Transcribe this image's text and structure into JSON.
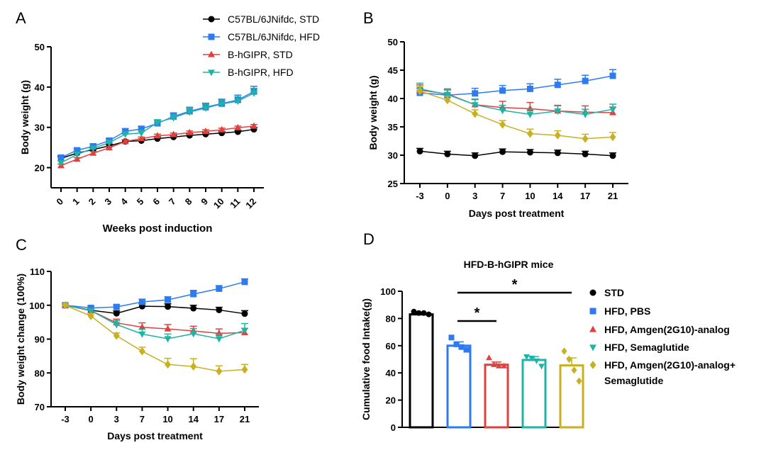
{
  "chart_data": [
    {
      "panel": "A",
      "type": "line",
      "xlabel": "Weeks post induction",
      "ylabel": "Body weight (g)",
      "ylim": [
        15,
        50
      ],
      "yticks": [
        20,
        30,
        40,
        50
      ],
      "categories": [
        "0",
        "1",
        "2",
        "3",
        "4",
        "5",
        "6",
        "7",
        "8",
        "9",
        "10",
        "11",
        "12"
      ],
      "series": [
        {
          "name": "C57BL/6JNifdc, STD",
          "color": "#000000",
          "marker": "circle",
          "values": [
            22.3,
            23.6,
            24.5,
            25.4,
            26.5,
            26.7,
            27.2,
            27.6,
            28.0,
            28.3,
            28.6,
            28.9,
            29.5
          ],
          "errors": [
            0.4,
            0.4,
            0.4,
            0.4,
            0.4,
            0.4,
            0.4,
            0.4,
            0.4,
            0.4,
            0.4,
            0.4,
            0.5
          ]
        },
        {
          "name": "C57BL/6JNifdc, HFD",
          "color": "#2e7bf0",
          "marker": "square",
          "values": [
            22.5,
            24.3,
            25.3,
            26.7,
            29.0,
            29.6,
            31.0,
            32.7,
            34.0,
            35.0,
            35.9,
            36.8,
            38.9
          ],
          "errors": [
            0.5,
            0.5,
            0.6,
            0.6,
            0.7,
            0.7,
            0.8,
            0.9,
            1.0,
            1.0,
            1.1,
            1.2,
            1.3
          ]
        },
        {
          "name": "B-hGIPR, STD",
          "color": "#e0413f",
          "marker": "triangle-up",
          "values": [
            20.5,
            22.1,
            23.6,
            24.9,
            26.5,
            27.2,
            27.9,
            28.2,
            28.7,
            29.0,
            29.4,
            29.9,
            30.3
          ],
          "errors": [
            0.4,
            0.4,
            0.4,
            0.4,
            0.4,
            0.4,
            0.4,
            0.4,
            0.4,
            0.4,
            0.4,
            0.4,
            0.4
          ]
        },
        {
          "name": "B-hGIPR, HFD",
          "color": "#1fb3a6",
          "marker": "triangle-down",
          "values": [
            21.2,
            23.3,
            24.8,
            26.2,
            28.3,
            28.6,
            31.2,
            32.4,
            33.8,
            34.8,
            35.8,
            36.5,
            38.5
          ],
          "errors": [
            0.5,
            0.5,
            0.5,
            0.6,
            0.6,
            0.7,
            0.7,
            0.8,
            0.9,
            1.0,
            1.0,
            1.1,
            1.2
          ]
        }
      ],
      "legend": "top-right"
    },
    {
      "panel": "B",
      "type": "line",
      "xlabel": "Days post treatment",
      "ylabel": "Body weight (g)",
      "ylim": [
        25,
        50
      ],
      "yticks": [
        25,
        30,
        35,
        40,
        45,
        50
      ],
      "categories": [
        "-3",
        "0",
        "3",
        "7",
        "10",
        "14",
        "17",
        "21"
      ],
      "series": [
        {
          "name": "STD",
          "color": "#000000",
          "marker": "circle",
          "values": [
            30.7,
            30.2,
            29.9,
            30.6,
            30.5,
            30.4,
            30.2,
            29.9
          ],
          "errors": [
            0.5,
            0.5,
            0.5,
            0.5,
            0.5,
            0.5,
            0.5,
            0.5
          ]
        },
        {
          "name": "HFD, PBS",
          "color": "#2e7bf0",
          "marker": "square",
          "values": [
            41.0,
            40.6,
            40.9,
            41.4,
            41.7,
            42.4,
            43.1,
            44.0
          ],
          "errors": [
            0.8,
            0.9,
            0.9,
            0.9,
            0.9,
            1.0,
            1.0,
            1.1
          ]
        },
        {
          "name": "HFD, Amgen(2G10)-analog",
          "color": "#e0413f",
          "marker": "triangle-up",
          "values": [
            41.5,
            40.8,
            38.9,
            38.4,
            38.2,
            37.8,
            37.6,
            37.5
          ],
          "errors": [
            0.9,
            0.9,
            1.0,
            1.1,
            1.1,
            1.0,
            1.1,
            1.0
          ]
        },
        {
          "name": "HFD, Semaglutide",
          "color": "#1fb3a6",
          "marker": "triangle-down",
          "values": [
            41.7,
            40.7,
            38.9,
            37.9,
            37.2,
            37.8,
            37.2,
            38.1
          ],
          "errors": [
            1.0,
            0.9,
            0.9,
            0.9,
            0.9,
            0.9,
            0.9,
            0.9
          ]
        },
        {
          "name": "HFD, Amgen(2G10)-analog+ Semaglutide",
          "color": "#c9b022",
          "marker": "diamond",
          "values": [
            41.3,
            39.7,
            37.3,
            35.4,
            33.8,
            33.5,
            32.9,
            33.2
          ],
          "errors": [
            0.8,
            0.7,
            0.7,
            0.7,
            0.8,
            0.8,
            0.8,
            0.8
          ]
        }
      ]
    },
    {
      "panel": "C",
      "type": "line",
      "xlabel": "Days post treatment",
      "ylabel": "Body weight change (100%)",
      "ylim": [
        70,
        110
      ],
      "yticks": [
        70,
        80,
        90,
        100,
        110
      ],
      "categories": [
        "-3",
        "0",
        "3",
        "7",
        "10",
        "14",
        "17",
        "21"
      ],
      "series": [
        {
          "name": "STD",
          "color": "#000000",
          "marker": "circle",
          "values": [
            100.0,
            98.5,
            97.6,
            99.7,
            99.6,
            99.1,
            98.6,
            97.5
          ],
          "errors": [
            0.4,
            0.6,
            0.7,
            0.7,
            0.8,
            0.9,
            0.8,
            0.9
          ]
        },
        {
          "name": "HFD, PBS",
          "color": "#2e7bf0",
          "marker": "square",
          "values": [
            100.0,
            99.2,
            99.5,
            101.0,
            101.6,
            103.3,
            104.9,
            106.9
          ],
          "errors": [
            0.4,
            0.6,
            0.6,
            0.8,
            0.9,
            1.1,
            0.9,
            0.9
          ]
        },
        {
          "name": "HFD, Amgen(2G10)-analog",
          "color": "#e0413f",
          "marker": "triangle-up",
          "values": [
            100.0,
            98.4,
            94.8,
            93.5,
            93.0,
            92.4,
            91.7,
            91.9
          ],
          "errors": [
            0.4,
            0.6,
            1.1,
            1.3,
            1.3,
            1.4,
            1.3,
            1.3
          ]
        },
        {
          "name": "HFD, Semaglutide",
          "color": "#1fb3a6",
          "marker": "triangle-down",
          "values": [
            100.0,
            98.4,
            94.3,
            91.5,
            90.1,
            91.6,
            90.1,
            92.6
          ],
          "errors": [
            0.4,
            0.6,
            1.2,
            1.4,
            1.4,
            1.5,
            1.4,
            2.0
          ]
        },
        {
          "name": "HFD, Amgen(2G10)-analog+ Semaglutide",
          "color": "#c9b022",
          "marker": "diamond",
          "values": [
            100.0,
            96.8,
            91.0,
            86.4,
            82.5,
            81.9,
            80.5,
            81.0
          ],
          "errors": [
            0.4,
            0.6,
            0.8,
            1.2,
            1.8,
            2.3,
            1.6,
            1.5
          ]
        }
      ]
    },
    {
      "panel": "D",
      "type": "bar",
      "subtitle": "HFD-B-hGIPR mice",
      "ylabel": "Cumulative food Intake(g)",
      "ylim": [
        0,
        100
      ],
      "yticks": [
        0,
        20,
        40,
        60,
        80,
        100
      ],
      "categories": [
        "STD",
        "HFD, PBS",
        "HFD, Amgen(2G10)-analog",
        "HFD, Semaglutide",
        "HFD, Amgen(2G10)-analog+ Semaglutide"
      ],
      "values": [
        83.0,
        60.0,
        46.0,
        49.5,
        45.5
      ],
      "errors": [
        0.8,
        2.8,
        2.0,
        2.5,
        5.5
      ],
      "points": [
        [
          85,
          84,
          84,
          83
        ],
        [
          66,
          61,
          59,
          57
        ],
        [
          51,
          46,
          45,
          45
        ],
        [
          52,
          51,
          49,
          45
        ],
        [
          56,
          50,
          42,
          34
        ]
      ],
      "colors": [
        "#000000",
        "#2e7bf0",
        "#e0413f",
        "#1fb3a6",
        "#c9b022"
      ],
      "markers": [
        "circle",
        "square",
        "triangle-up",
        "triangle-down",
        "diamond"
      ],
      "significance": [
        {
          "label": "*",
          "from": 1,
          "to": 4
        },
        {
          "label": "*",
          "from": 1,
          "to": 2
        }
      ],
      "legend_lines": [
        [
          "STD"
        ],
        [
          "HFD, PBS"
        ],
        [
          "HFD, Amgen(2G10)-analog"
        ],
        [
          "HFD, Semaglutide"
        ],
        [
          "HFD, Amgen(2G10)-analog+",
          "Semaglutide"
        ]
      ],
      "legend": "right"
    }
  ]
}
